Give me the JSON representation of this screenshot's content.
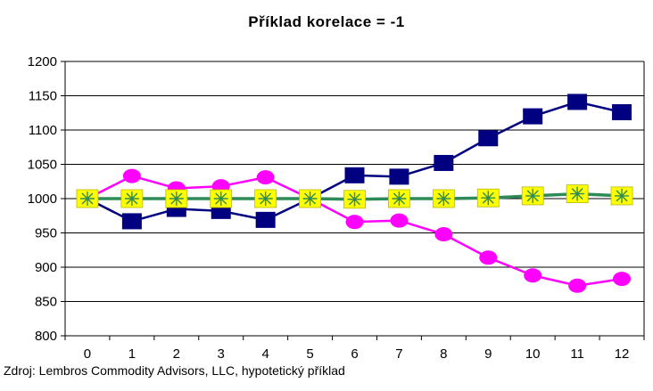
{
  "chart_data": {
    "type": "line",
    "title": "Příklad korelace = -1",
    "x": [
      0,
      1,
      2,
      3,
      4,
      5,
      6,
      7,
      8,
      9,
      10,
      11,
      12
    ],
    "x_tick_labels": [
      "0",
      "1",
      "2",
      "3",
      "4",
      "5",
      "6",
      "7",
      "8",
      "9",
      "10",
      "11",
      "12"
    ],
    "y_tick_labels": [
      "800",
      "850",
      "900",
      "950",
      "1000",
      "1050",
      "1100",
      "1150",
      "1200"
    ],
    "ylim": [
      800,
      1200
    ],
    "y_ticks": [
      800,
      850,
      900,
      950,
      1000,
      1050,
      1100,
      1150,
      1200
    ],
    "grid": "horizontal",
    "legend": "none",
    "series": [
      {
        "values": [
          1000,
          967,
          985,
          982,
          969,
          1000,
          1034,
          1032,
          1052,
          1088,
          1120,
          1141,
          1126
        ],
        "color": "#000080",
        "marker": "square"
      },
      {
        "values": [
          1000,
          1033,
          1015,
          1018,
          1031,
          1000,
          966,
          968,
          948,
          914,
          888,
          873,
          883
        ],
        "color": "#ff00ff",
        "marker": "circle"
      },
      {
        "values": [
          1000,
          1000,
          1000,
          1000,
          1000,
          1000,
          999,
          1000,
          1000,
          1001,
          1004,
          1007,
          1004
        ],
        "color": "#2e8b57",
        "marker": "asterisk-square",
        "marker_color": "#ffff00"
      }
    ]
  },
  "source_note": "Zdroj: Lembros Commodity Advisors, LLC, hypotetický příklad"
}
